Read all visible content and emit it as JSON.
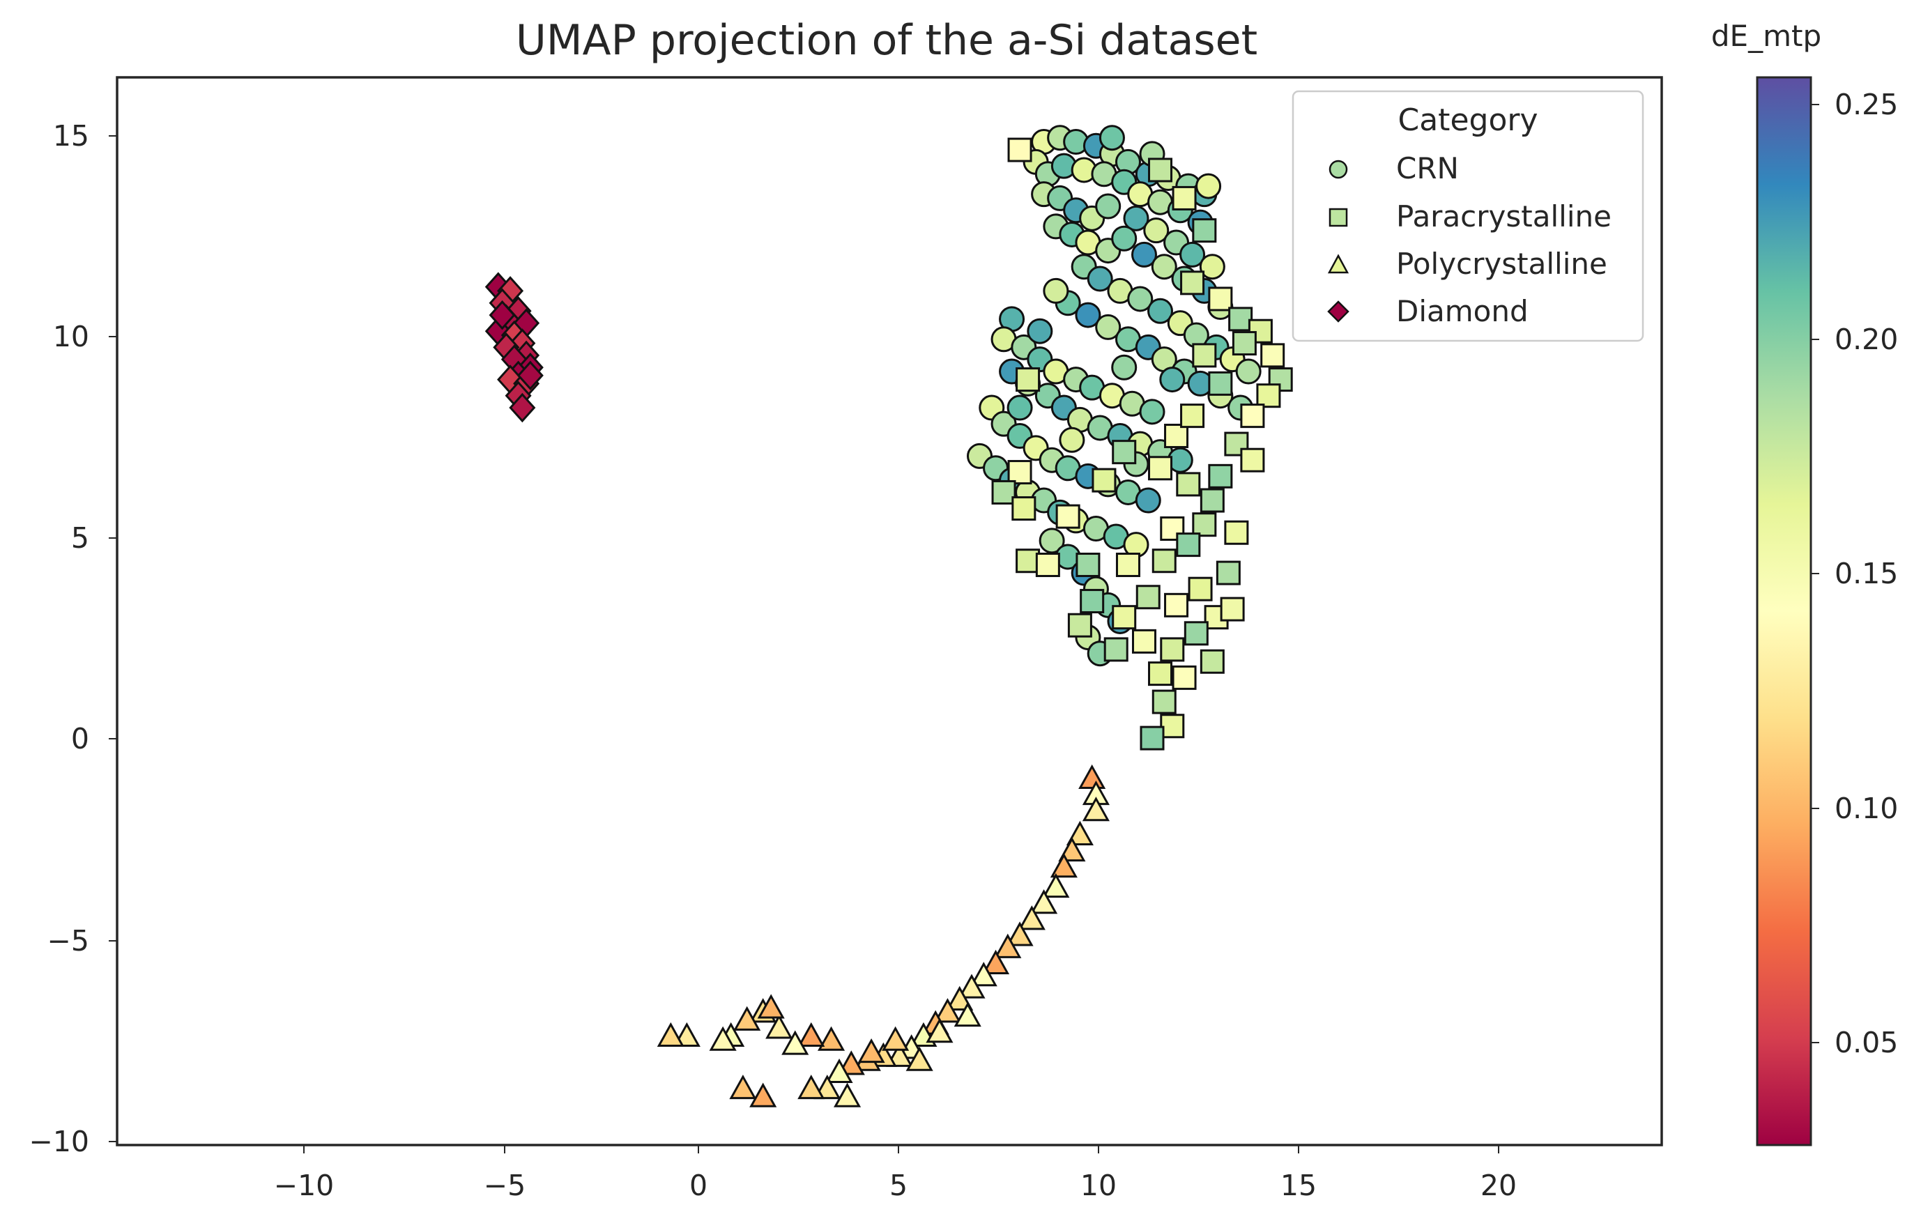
{
  "chart_data": {
    "type": "scatter",
    "title": "UMAP projection of the a-Si dataset",
    "xlabel": "",
    "ylabel": "",
    "xlim": [
      -14.5,
      24
    ],
    "ylim": [
      -10,
      16.5
    ],
    "x_ticks": [
      "−10",
      "−5",
      "0",
      "5",
      "10",
      "15",
      "20"
    ],
    "y_ticks": [
      "15",
      "10",
      "5",
      "0",
      "−5",
      "−10"
    ],
    "grid": false,
    "legend": {
      "title": "Category",
      "placement": "top-right",
      "entries": [
        "CRN",
        "Paracrystalline",
        "Polycrystalline",
        "Diamond"
      ]
    },
    "colorbar": {
      "label": "dE_mtp",
      "colormap": "Spectral",
      "range": [
        0.027,
        0.257
      ],
      "ticks": [
        "0.05",
        "0.10",
        "0.15",
        "0.20",
        "0.25"
      ]
    },
    "colormap_stops": [
      "#9e0142",
      "#d53e4f",
      "#f46d43",
      "#fdae61",
      "#fee08b",
      "#ffffbf",
      "#e6f598",
      "#abdda4",
      "#66c2a5",
      "#3288bd",
      "#5e4fa2"
    ],
    "series": [
      {
        "name": "CRN",
        "marker": "circle",
        "color_value_range": [
          0.16,
          0.23
        ],
        "points": [
          [
            8.6,
            14.9
          ],
          [
            9.0,
            15.0
          ],
          [
            9.4,
            14.9
          ],
          [
            9.9,
            14.8
          ],
          [
            10.3,
            14.6
          ],
          [
            10.7,
            14.4
          ],
          [
            11.2,
            14.1
          ],
          [
            11.7,
            14.0
          ],
          [
            12.2,
            13.8
          ],
          [
            12.6,
            13.6
          ],
          [
            8.4,
            14.4
          ],
          [
            8.7,
            14.1
          ],
          [
            9.1,
            14.3
          ],
          [
            9.6,
            14.2
          ],
          [
            10.1,
            14.1
          ],
          [
            10.6,
            13.9
          ],
          [
            11.0,
            13.6
          ],
          [
            11.5,
            13.4
          ],
          [
            12.0,
            13.2
          ],
          [
            12.5,
            12.9
          ],
          [
            8.6,
            13.6
          ],
          [
            9.0,
            13.5
          ],
          [
            9.4,
            13.2
          ],
          [
            9.8,
            13.0
          ],
          [
            10.2,
            13.3
          ],
          [
            10.9,
            13.0
          ],
          [
            11.4,
            12.7
          ],
          [
            11.9,
            12.4
          ],
          [
            12.3,
            12.1
          ],
          [
            12.8,
            11.8
          ],
          [
            8.9,
            12.8
          ],
          [
            9.3,
            12.6
          ],
          [
            9.7,
            12.4
          ],
          [
            10.2,
            12.2
          ],
          [
            10.6,
            12.5
          ],
          [
            11.1,
            12.1
          ],
          [
            11.6,
            11.8
          ],
          [
            12.1,
            11.5
          ],
          [
            12.6,
            11.2
          ],
          [
            13.0,
            10.8
          ],
          [
            9.6,
            11.8
          ],
          [
            10.0,
            11.5
          ],
          [
            10.5,
            11.2
          ],
          [
            11.0,
            11.0
          ],
          [
            11.5,
            10.7
          ],
          [
            12.0,
            10.4
          ],
          [
            12.4,
            10.1
          ],
          [
            12.9,
            9.8
          ],
          [
            13.3,
            9.5
          ],
          [
            13.7,
            9.2
          ],
          [
            9.2,
            10.9
          ],
          [
            9.7,
            10.6
          ],
          [
            10.2,
            10.3
          ],
          [
            10.7,
            10.0
          ],
          [
            11.2,
            9.8
          ],
          [
            11.6,
            9.5
          ],
          [
            12.1,
            9.2
          ],
          [
            12.5,
            8.9
          ],
          [
            13.0,
            8.6
          ],
          [
            13.5,
            8.3
          ],
          [
            7.8,
            10.5
          ],
          [
            7.6,
            10.0
          ],
          [
            8.1,
            9.8
          ],
          [
            8.5,
            9.5
          ],
          [
            8.9,
            9.2
          ],
          [
            9.4,
            9.0
          ],
          [
            9.8,
            8.8
          ],
          [
            10.3,
            8.6
          ],
          [
            10.8,
            8.4
          ],
          [
            11.3,
            8.2
          ],
          [
            7.8,
            9.2
          ],
          [
            8.2,
            8.9
          ],
          [
            8.7,
            8.6
          ],
          [
            9.1,
            8.3
          ],
          [
            9.5,
            8.0
          ],
          [
            10.0,
            7.8
          ],
          [
            10.5,
            7.6
          ],
          [
            11.0,
            7.4
          ],
          [
            11.5,
            7.2
          ],
          [
            12.0,
            7.0
          ],
          [
            7.3,
            8.3
          ],
          [
            7.6,
            7.9
          ],
          [
            8.0,
            7.6
          ],
          [
            8.4,
            7.3
          ],
          [
            8.8,
            7.0
          ],
          [
            9.2,
            6.8
          ],
          [
            9.7,
            6.6
          ],
          [
            10.2,
            6.4
          ],
          [
            10.7,
            6.2
          ],
          [
            11.2,
            6.0
          ],
          [
            7.0,
            7.1
          ],
          [
            7.4,
            6.8
          ],
          [
            7.8,
            6.5
          ],
          [
            8.2,
            6.2
          ],
          [
            8.6,
            6.0
          ],
          [
            9.0,
            5.7
          ],
          [
            9.4,
            5.5
          ],
          [
            9.9,
            5.3
          ],
          [
            10.4,
            5.1
          ],
          [
            10.9,
            4.9
          ],
          [
            8.8,
            5.0
          ],
          [
            9.2,
            4.6
          ],
          [
            9.6,
            4.2
          ],
          [
            9.9,
            3.8
          ],
          [
            10.2,
            3.4
          ],
          [
            10.5,
            3.0
          ],
          [
            9.7,
            2.6
          ],
          [
            10.0,
            2.2
          ],
          [
            8.5,
            10.2
          ],
          [
            8.9,
            11.2
          ],
          [
            10.6,
            9.3
          ],
          [
            11.8,
            9.0
          ],
          [
            9.3,
            7.5
          ],
          [
            10.9,
            6.9
          ],
          [
            8.0,
            8.3
          ],
          [
            12.7,
            13.8
          ],
          [
            11.3,
            14.6
          ],
          [
            10.3,
            15.0
          ]
        ]
      },
      {
        "name": "Paracrystalline",
        "marker": "square",
        "color_value_range": [
          0.14,
          0.2
        ],
        "points": [
          [
            8.0,
            14.7
          ],
          [
            11.5,
            14.2
          ],
          [
            12.1,
            13.5
          ],
          [
            12.6,
            12.7
          ],
          [
            12.3,
            11.4
          ],
          [
            13.0,
            11.0
          ],
          [
            13.5,
            10.5
          ],
          [
            14.0,
            10.2
          ],
          [
            14.3,
            9.6
          ],
          [
            14.5,
            9.0
          ],
          [
            14.2,
            8.6
          ],
          [
            13.8,
            8.1
          ],
          [
            13.4,
            7.4
          ],
          [
            13.8,
            7.0
          ],
          [
            13.0,
            6.6
          ],
          [
            12.2,
            6.4
          ],
          [
            11.5,
            6.8
          ],
          [
            10.6,
            7.2
          ],
          [
            8.2,
            9.0
          ],
          [
            8.0,
            6.7
          ],
          [
            7.6,
            6.2
          ],
          [
            8.1,
            5.8
          ],
          [
            11.8,
            5.3
          ],
          [
            12.6,
            5.4
          ],
          [
            13.4,
            5.2
          ],
          [
            12.2,
            4.9
          ],
          [
            11.6,
            4.5
          ],
          [
            10.7,
            4.4
          ],
          [
            9.7,
            4.4
          ],
          [
            8.2,
            4.5
          ],
          [
            8.7,
            4.4
          ],
          [
            13.2,
            4.2
          ],
          [
            12.5,
            3.8
          ],
          [
            11.9,
            3.4
          ],
          [
            11.2,
            3.6
          ],
          [
            10.6,
            3.1
          ],
          [
            9.8,
            3.5
          ],
          [
            9.5,
            2.9
          ],
          [
            12.9,
            3.1
          ],
          [
            12.4,
            2.7
          ],
          [
            11.8,
            2.3
          ],
          [
            11.1,
            2.5
          ],
          [
            10.4,
            2.3
          ],
          [
            11.5,
            1.7
          ],
          [
            12.1,
            1.6
          ],
          [
            11.6,
            1.0
          ],
          [
            11.8,
            0.4
          ],
          [
            11.3,
            0.1
          ],
          [
            12.8,
            2.0
          ],
          [
            13.3,
            3.3
          ],
          [
            13.0,
            8.9
          ],
          [
            12.6,
            9.6
          ],
          [
            11.9,
            7.6
          ],
          [
            12.8,
            6.0
          ],
          [
            10.1,
            6.5
          ],
          [
            9.2,
            5.6
          ],
          [
            13.6,
            9.9
          ],
          [
            12.3,
            8.1
          ]
        ]
      },
      {
        "name": "Polycrystalline",
        "marker": "triangle",
        "color_value_range": [
          0.09,
          0.15
        ],
        "points": [
          [
            9.8,
            -0.9
          ],
          [
            9.9,
            -1.3
          ],
          [
            9.9,
            -1.7
          ],
          [
            9.5,
            -2.3
          ],
          [
            9.3,
            -2.7
          ],
          [
            9.1,
            -3.1
          ],
          [
            8.9,
            -3.6
          ],
          [
            8.6,
            -4.0
          ],
          [
            8.3,
            -4.4
          ],
          [
            8.0,
            -4.8
          ],
          [
            7.7,
            -5.1
          ],
          [
            7.4,
            -5.5
          ],
          [
            7.1,
            -5.8
          ],
          [
            6.8,
            -6.1
          ],
          [
            6.5,
            -6.4
          ],
          [
            6.2,
            -6.7
          ],
          [
            5.9,
            -7.0
          ],
          [
            5.6,
            -7.3
          ],
          [
            5.3,
            -7.6
          ],
          [
            5.0,
            -7.8
          ],
          [
            4.6,
            -7.8
          ],
          [
            4.2,
            -7.9
          ],
          [
            3.8,
            -8.0
          ],
          [
            3.5,
            -8.2
          ],
          [
            3.7,
            -8.8
          ],
          [
            3.2,
            -8.6
          ],
          [
            2.8,
            -8.6
          ],
          [
            3.3,
            -7.4
          ],
          [
            2.8,
            -7.3
          ],
          [
            2.4,
            -7.5
          ],
          [
            2.0,
            -7.1
          ],
          [
            1.6,
            -6.7
          ],
          [
            1.2,
            -6.9
          ],
          [
            1.8,
            -6.6
          ],
          [
            0.8,
            -7.3
          ],
          [
            0.6,
            -7.4
          ],
          [
            -0.3,
            -7.3
          ],
          [
            -0.7,
            -7.3
          ],
          [
            1.1,
            -8.6
          ],
          [
            1.6,
            -8.8
          ],
          [
            6.7,
            -6.8
          ],
          [
            6.0,
            -7.2
          ],
          [
            5.5,
            -7.9
          ],
          [
            4.9,
            -7.4
          ],
          [
            4.3,
            -7.7
          ]
        ]
      },
      {
        "name": "Diamond",
        "marker": "diamond",
        "color_value_range": [
          0.02,
          0.05
        ],
        "points": [
          [
            -5.0,
            11.3
          ],
          [
            -4.7,
            11.2
          ],
          [
            -4.9,
            10.9
          ],
          [
            -4.5,
            10.7
          ],
          [
            -4.8,
            10.5
          ],
          [
            -4.3,
            10.4
          ],
          [
            -5.0,
            10.2
          ],
          [
            -4.6,
            10.1
          ],
          [
            -4.4,
            9.9
          ],
          [
            -4.8,
            9.8
          ],
          [
            -4.3,
            9.6
          ],
          [
            -4.6,
            9.5
          ],
          [
            -4.2,
            9.3
          ],
          [
            -4.5,
            9.1
          ],
          [
            -4.7,
            9.0
          ],
          [
            -4.3,
            8.9
          ],
          [
            -4.5,
            8.6
          ],
          [
            -4.4,
            8.3
          ],
          [
            -4.2,
            9.1
          ],
          [
            -4.9,
            10.6
          ]
        ]
      }
    ]
  }
}
